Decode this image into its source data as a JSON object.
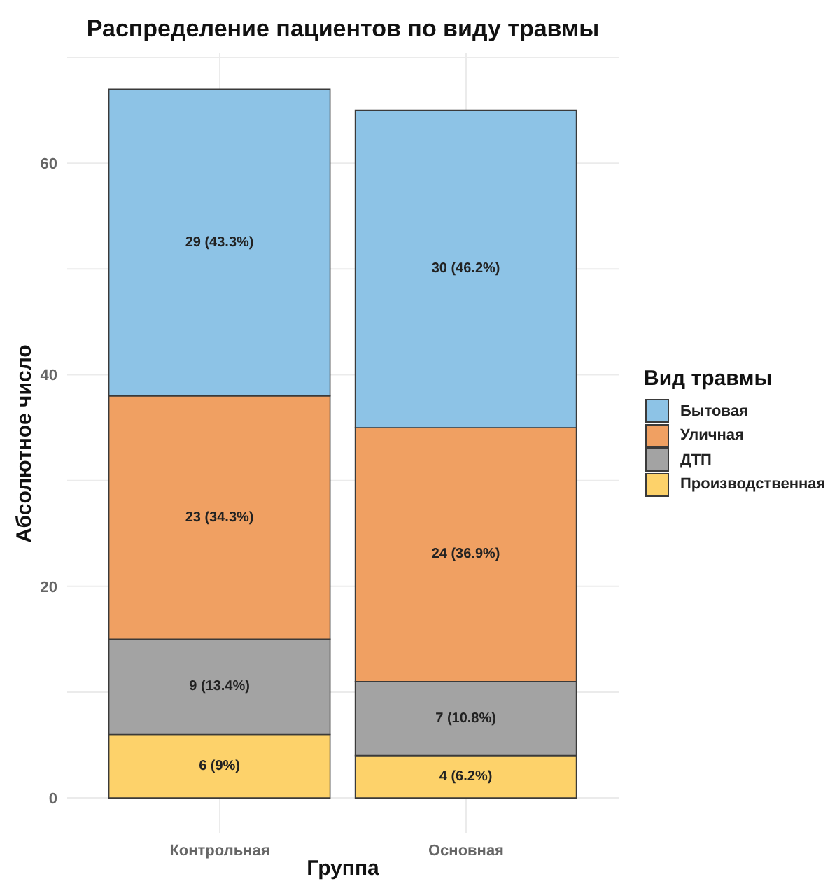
{
  "chart_data": {
    "type": "bar",
    "title": "Распределение пациентов по виду травмы",
    "xlabel": "Группа",
    "ylabel": "Абсолютное число",
    "legend_title": "Вид травмы",
    "categories": [
      "Контрольная",
      "Основная"
    ],
    "stacked": true,
    "series": [
      {
        "name": "Производственная",
        "color": "#fdd26a",
        "values": [
          6,
          4
        ],
        "value_labels": [
          "6 (9%)",
          "4 (6.2%)"
        ]
      },
      {
        "name": "ДТП",
        "color": "#a3a3a3",
        "values": [
          9,
          7
        ],
        "value_labels": [
          "9 (13.4%)",
          "7 (10.8%)"
        ]
      },
      {
        "name": "Уличная",
        "color": "#f0a062",
        "values": [
          23,
          24
        ],
        "value_labels": [
          "23 (34.3%)",
          "24 (36.9%)"
        ]
      },
      {
        "name": "Бытовая",
        "color": "#8dc3e6",
        "values": [
          29,
          30
        ],
        "value_labels": [
          "29 (43.3%)",
          "30 (46.2%)"
        ]
      }
    ],
    "ylim": [
      -3.3,
      70.4
    ],
    "yticks": [
      0,
      {
        "value": 10,
        "label": null
      },
      20,
      {
        "value": 30,
        "label": null
      },
      40,
      {
        "value": 50,
        "label": null
      },
      60,
      {
        "value": 70,
        "label": null
      }
    ],
    "grid": true,
    "legend": "right"
  }
}
